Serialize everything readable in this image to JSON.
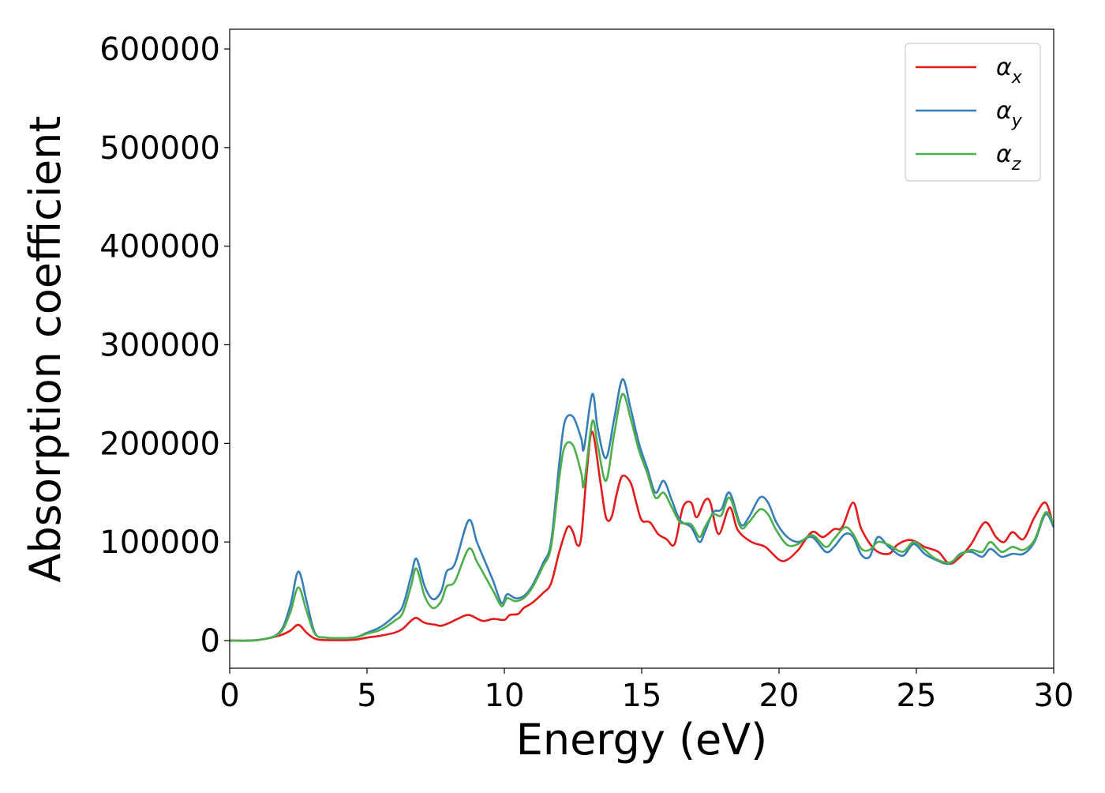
{
  "chart_data": {
    "type": "line",
    "title": "",
    "xlabel": "Energy (eV)",
    "ylabel": "Absorption coefficient",
    "xlim": [
      0,
      30
    ],
    "ylim": [
      -28000,
      620000
    ],
    "xticks": [
      0,
      5,
      10,
      15,
      20,
      25,
      30
    ],
    "xtick_labels": [
      "0",
      "5",
      "10",
      "15",
      "20",
      "25",
      "30"
    ],
    "yticks": [
      0,
      100000,
      200000,
      300000,
      400000,
      500000,
      600000
    ],
    "ytick_labels": [
      "0",
      "100000",
      "200000",
      "300000",
      "400000",
      "500000",
      "600000"
    ],
    "grid": false,
    "legend_position": "top-right",
    "series": [
      {
        "name": "αx",
        "legend_symbol": "α",
        "legend_subscript": "x",
        "color": "#e41a1c",
        "points": [
          [
            0,
            0
          ],
          [
            1,
            500
          ],
          [
            1.8,
            5000
          ],
          [
            2.2,
            10000
          ],
          [
            2.5,
            16000
          ],
          [
            2.8,
            8000
          ],
          [
            3.1,
            2000
          ],
          [
            3.5,
            500
          ],
          [
            4.5,
            800
          ],
          [
            5,
            3000
          ],
          [
            5.5,
            5000
          ],
          [
            6,
            8000
          ],
          [
            6.3,
            12000
          ],
          [
            6.6,
            20000
          ],
          [
            6.8,
            23000
          ],
          [
            7.1,
            18000
          ],
          [
            7.5,
            16000
          ],
          [
            7.7,
            15000
          ],
          [
            8.0,
            18000
          ],
          [
            8.3,
            22000
          ],
          [
            8.7,
            26000
          ],
          [
            9.2,
            20000
          ],
          [
            9.6,
            22000
          ],
          [
            10.0,
            21000
          ],
          [
            10.2,
            26000
          ],
          [
            10.5,
            27000
          ],
          [
            10.7,
            33000
          ],
          [
            11.0,
            38000
          ],
          [
            11.4,
            48000
          ],
          [
            11.7,
            58000
          ],
          [
            12.0,
            90000
          ],
          [
            12.3,
            115000
          ],
          [
            12.5,
            110000
          ],
          [
            12.65,
            97000
          ],
          [
            12.8,
            105000
          ],
          [
            13.0,
            170000
          ],
          [
            13.2,
            212000
          ],
          [
            13.5,
            160000
          ],
          [
            13.7,
            125000
          ],
          [
            13.9,
            125000
          ],
          [
            14.1,
            150000
          ],
          [
            14.3,
            167000
          ],
          [
            14.6,
            160000
          ],
          [
            14.8,
            140000
          ],
          [
            15.0,
            122000
          ],
          [
            15.3,
            120000
          ],
          [
            15.6,
            108000
          ],
          [
            15.9,
            103000
          ],
          [
            16.2,
            98000
          ],
          [
            16.5,
            135000
          ],
          [
            16.8,
            140000
          ],
          [
            17.0,
            125000
          ],
          [
            17.3,
            142000
          ],
          [
            17.5,
            140000
          ],
          [
            17.8,
            108000
          ],
          [
            18.2,
            135000
          ],
          [
            18.5,
            112000
          ],
          [
            19.0,
            100000
          ],
          [
            19.5,
            95000
          ],
          [
            20.0,
            82000
          ],
          [
            20.3,
            82000
          ],
          [
            20.7,
            92000
          ],
          [
            21.2,
            110000
          ],
          [
            21.6,
            105000
          ],
          [
            22.0,
            113000
          ],
          [
            22.3,
            115000
          ],
          [
            22.7,
            140000
          ],
          [
            23.0,
            113000
          ],
          [
            23.5,
            92000
          ],
          [
            24.0,
            88000
          ],
          [
            24.3,
            97000
          ],
          [
            24.7,
            102000
          ],
          [
            25.0,
            100000
          ],
          [
            25.3,
            95000
          ],
          [
            25.8,
            90000
          ],
          [
            26.2,
            78000
          ],
          [
            26.6,
            85000
          ],
          [
            27.0,
            98000
          ],
          [
            27.5,
            120000
          ],
          [
            27.9,
            105000
          ],
          [
            28.2,
            100000
          ],
          [
            28.5,
            110000
          ],
          [
            28.9,
            103000
          ],
          [
            29.3,
            125000
          ],
          [
            29.7,
            140000
          ],
          [
            30,
            115000
          ]
        ]
      },
      {
        "name": "αy",
        "legend_symbol": "α",
        "legend_subscript": "y",
        "color": "#377eb8",
        "points": [
          [
            0,
            0
          ],
          [
            1,
            500
          ],
          [
            1.8,
            8000
          ],
          [
            2.2,
            35000
          ],
          [
            2.5,
            70000
          ],
          [
            2.8,
            40000
          ],
          [
            3.1,
            8000
          ],
          [
            3.5,
            3000
          ],
          [
            4.5,
            3000
          ],
          [
            5,
            8000
          ],
          [
            5.5,
            14000
          ],
          [
            6,
            25000
          ],
          [
            6.3,
            35000
          ],
          [
            6.6,
            65000
          ],
          [
            6.8,
            83000
          ],
          [
            7.1,
            55000
          ],
          [
            7.4,
            42000
          ],
          [
            7.7,
            50000
          ],
          [
            7.9,
            70000
          ],
          [
            8.2,
            78000
          ],
          [
            8.7,
            122000
          ],
          [
            9.0,
            100000
          ],
          [
            9.3,
            80000
          ],
          [
            9.6,
            60000
          ],
          [
            9.9,
            38000
          ],
          [
            10.1,
            47000
          ],
          [
            10.4,
            43000
          ],
          [
            10.7,
            45000
          ],
          [
            11.0,
            55000
          ],
          [
            11.4,
            78000
          ],
          [
            11.7,
            100000
          ],
          [
            12.0,
            180000
          ],
          [
            12.2,
            222000
          ],
          [
            12.5,
            227000
          ],
          [
            12.8,
            205000
          ],
          [
            12.9,
            195000
          ],
          [
            13.2,
            250000
          ],
          [
            13.4,
            215000
          ],
          [
            13.7,
            185000
          ],
          [
            14.0,
            225000
          ],
          [
            14.3,
            265000
          ],
          [
            14.6,
            235000
          ],
          [
            14.9,
            200000
          ],
          [
            15.2,
            175000
          ],
          [
            15.5,
            150000
          ],
          [
            15.8,
            162000
          ],
          [
            16.1,
            142000
          ],
          [
            16.4,
            122000
          ],
          [
            16.8,
            115000
          ],
          [
            17.1,
            100000
          ],
          [
            17.3,
            110000
          ],
          [
            17.6,
            130000
          ],
          [
            17.9,
            133000
          ],
          [
            18.2,
            150000
          ],
          [
            18.6,
            118000
          ],
          [
            18.9,
            125000
          ],
          [
            19.3,
            145000
          ],
          [
            19.6,
            140000
          ],
          [
            19.9,
            120000
          ],
          [
            20.3,
            105000
          ],
          [
            20.7,
            100000
          ],
          [
            21.2,
            105000
          ],
          [
            21.7,
            90000
          ],
          [
            22.0,
            95000
          ],
          [
            22.4,
            108000
          ],
          [
            22.7,
            105000
          ],
          [
            23.0,
            87000
          ],
          [
            23.3,
            85000
          ],
          [
            23.6,
            105000
          ],
          [
            24.0,
            95000
          ],
          [
            24.5,
            86000
          ],
          [
            24.9,
            98000
          ],
          [
            25.3,
            88000
          ],
          [
            25.7,
            82000
          ],
          [
            26.2,
            78000
          ],
          [
            26.6,
            88000
          ],
          [
            27.0,
            90000
          ],
          [
            27.4,
            85000
          ],
          [
            27.7,
            93000
          ],
          [
            28.1,
            85000
          ],
          [
            28.5,
            88000
          ],
          [
            28.9,
            88000
          ],
          [
            29.3,
            100000
          ],
          [
            29.7,
            128000
          ],
          [
            30,
            115000
          ]
        ]
      },
      {
        "name": "αz",
        "legend_symbol": "α",
        "legend_subscript": "z",
        "color": "#4daf4a",
        "points": [
          [
            0,
            0
          ],
          [
            1,
            500
          ],
          [
            1.8,
            7000
          ],
          [
            2.2,
            28000
          ],
          [
            2.5,
            54000
          ],
          [
            2.8,
            30000
          ],
          [
            3.1,
            7000
          ],
          [
            3.5,
            3000
          ],
          [
            4.5,
            3000
          ],
          [
            5,
            7000
          ],
          [
            5.5,
            11000
          ],
          [
            6,
            20000
          ],
          [
            6.3,
            28000
          ],
          [
            6.6,
            55000
          ],
          [
            6.8,
            73000
          ],
          [
            7.1,
            45000
          ],
          [
            7.4,
            33000
          ],
          [
            7.7,
            40000
          ],
          [
            7.9,
            55000
          ],
          [
            8.2,
            60000
          ],
          [
            8.7,
            93000
          ],
          [
            9.0,
            80000
          ],
          [
            9.3,
            65000
          ],
          [
            9.6,
            50000
          ],
          [
            9.9,
            35000
          ],
          [
            10.1,
            43000
          ],
          [
            10.4,
            40000
          ],
          [
            10.7,
            43000
          ],
          [
            11.0,
            53000
          ],
          [
            11.4,
            75000
          ],
          [
            11.7,
            95000
          ],
          [
            12.0,
            165000
          ],
          [
            12.2,
            197000
          ],
          [
            12.5,
            198000
          ],
          [
            12.8,
            170000
          ],
          [
            12.9,
            158000
          ],
          [
            13.2,
            222000
          ],
          [
            13.4,
            198000
          ],
          [
            13.7,
            162000
          ],
          [
            14.0,
            210000
          ],
          [
            14.3,
            250000
          ],
          [
            14.6,
            225000
          ],
          [
            14.9,
            193000
          ],
          [
            15.2,
            170000
          ],
          [
            15.5,
            145000
          ],
          [
            15.8,
            150000
          ],
          [
            16.1,
            135000
          ],
          [
            16.4,
            120000
          ],
          [
            16.8,
            118000
          ],
          [
            17.1,
            105000
          ],
          [
            17.3,
            115000
          ],
          [
            17.6,
            128000
          ],
          [
            17.9,
            127000
          ],
          [
            18.2,
            145000
          ],
          [
            18.6,
            115000
          ],
          [
            18.9,
            120000
          ],
          [
            19.3,
            133000
          ],
          [
            19.6,
            128000
          ],
          [
            19.9,
            112000
          ],
          [
            20.3,
            97000
          ],
          [
            20.7,
            98000
          ],
          [
            21.2,
            107000
          ],
          [
            21.7,
            95000
          ],
          [
            22.0,
            103000
          ],
          [
            22.4,
            115000
          ],
          [
            22.7,
            108000
          ],
          [
            23.0,
            93000
          ],
          [
            23.3,
            92000
          ],
          [
            23.6,
            100000
          ],
          [
            24.0,
            97000
          ],
          [
            24.5,
            90000
          ],
          [
            24.9,
            100000
          ],
          [
            25.3,
            92000
          ],
          [
            25.7,
            83000
          ],
          [
            26.2,
            79000
          ],
          [
            26.6,
            87000
          ],
          [
            27.0,
            92000
          ],
          [
            27.4,
            90000
          ],
          [
            27.7,
            100000
          ],
          [
            28.1,
            90000
          ],
          [
            28.5,
            95000
          ],
          [
            28.9,
            92000
          ],
          [
            29.3,
            102000
          ],
          [
            29.7,
            130000
          ],
          [
            30,
            118000
          ]
        ]
      }
    ]
  }
}
